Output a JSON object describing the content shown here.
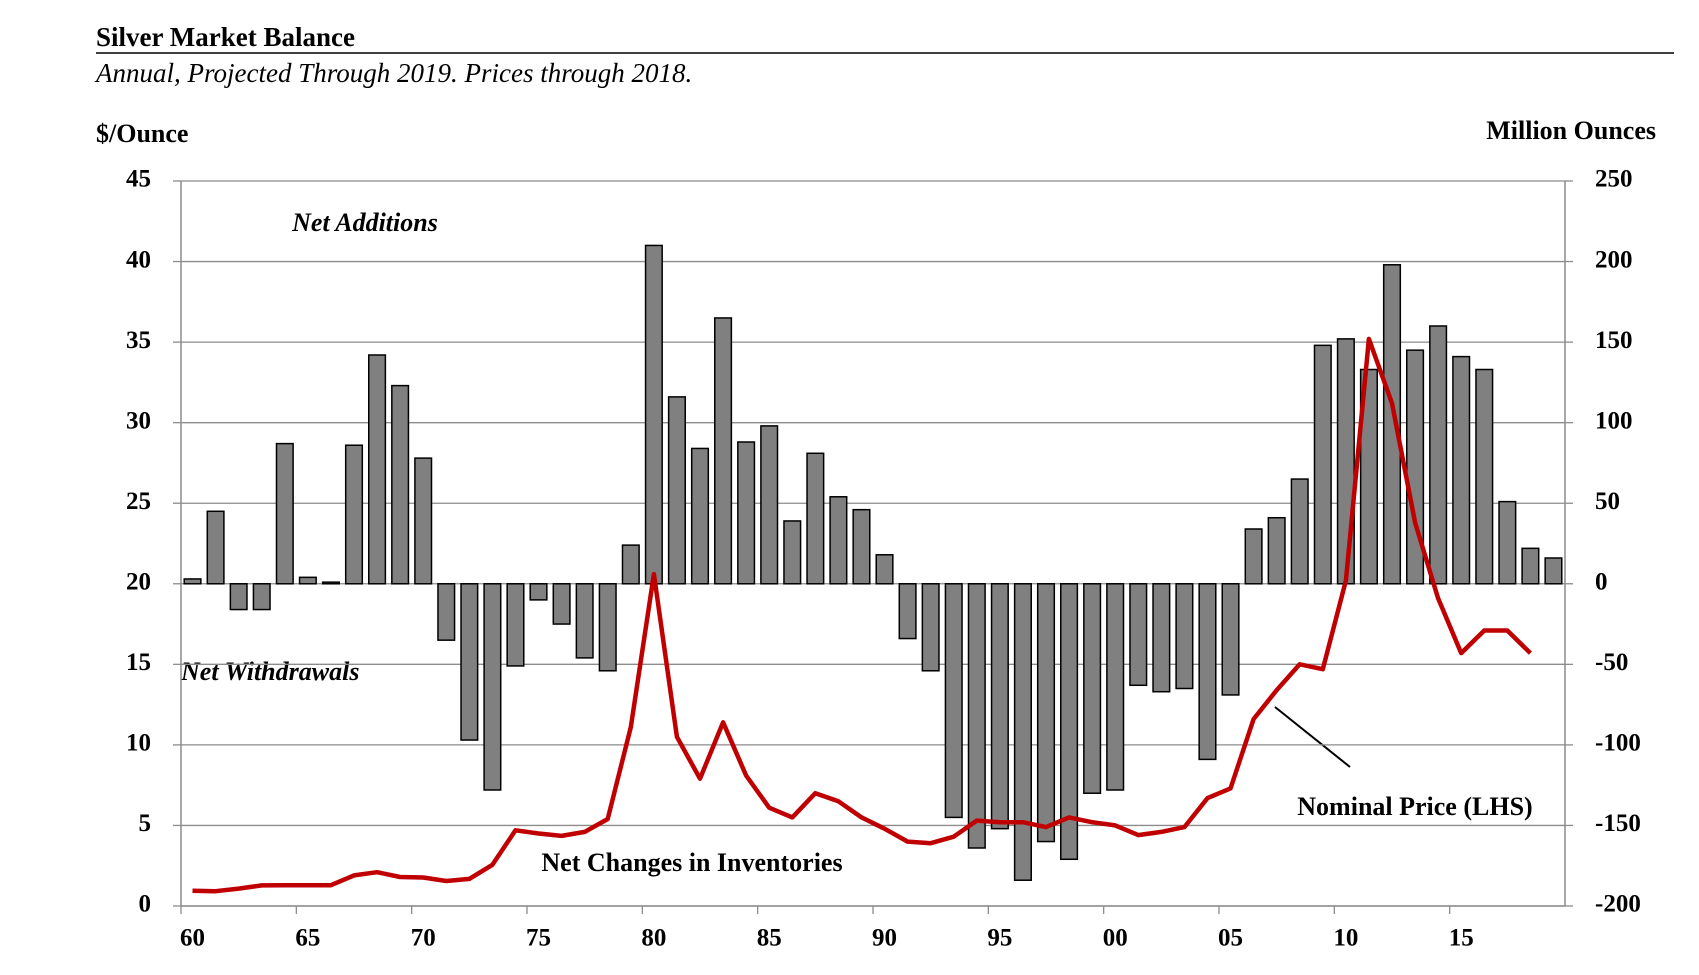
{
  "chart_data": {
    "type": "combo",
    "title": "Silver Market Balance",
    "subtitle": "Annual, Projected Through 2019. Prices through 2018.",
    "y_label": "$/Ounce",
    "y2_label": "Million Ounces",
    "annotations": [
      "Net Additions",
      "Net Withdrawals"
    ],
    "categories": [
      "60",
      null,
      null,
      null,
      null,
      "65",
      null,
      null,
      null,
      null,
      "70",
      null,
      null,
      null,
      null,
      "75",
      null,
      null,
      null,
      null,
      "80",
      null,
      null,
      null,
      null,
      "85",
      null,
      null,
      null,
      null,
      "90",
      null,
      null,
      null,
      null,
      "95",
      null,
      null,
      null,
      null,
      "00",
      null,
      null,
      null,
      null,
      "05",
      null,
      null,
      null,
      null,
      "10",
      null,
      null,
      null,
      null,
      "15",
      null,
      null,
      null,
      null
    ],
    "ylim": [
      0,
      45
    ],
    "yticks": [
      0,
      5,
      10,
      15,
      20,
      25,
      30,
      35,
      40,
      45
    ],
    "y2lim": [
      -200,
      250
    ],
    "y2ticks": [
      -200,
      -150,
      -100,
      -50,
      0,
      50,
      100,
      150,
      200,
      250
    ],
    "grid": true,
    "series": [
      {
        "name": "Net Changes in Inventories",
        "type": "bar",
        "axis": "y2",
        "color": "#808080",
        "values": [
          3,
          45,
          -16,
          -16,
          87,
          4,
          1,
          86,
          142,
          123,
          78,
          -35,
          -97,
          -128,
          -51,
          -10,
          -25,
          -46,
          -54,
          24,
          210,
          116,
          84,
          165,
          88,
          98,
          39,
          81,
          54,
          46,
          18,
          -34,
          -54,
          -145,
          -164,
          -152,
          -184,
          -160,
          -171,
          -130,
          -128,
          -63,
          -67,
          -65,
          -109,
          -69,
          34,
          41,
          65,
          148,
          152,
          133,
          198,
          145,
          160,
          141,
          133,
          51,
          22,
          16
        ]
      },
      {
        "name": "Nominal Price (LHS)",
        "type": "line",
        "axis": "y",
        "color": "#c00000",
        "values": [
          0.95,
          0.92,
          1.08,
          1.28,
          1.29,
          1.29,
          1.29,
          1.9,
          2.1,
          1.8,
          1.77,
          1.55,
          1.68,
          2.56,
          4.7,
          4.5,
          4.35,
          4.6,
          5.4,
          11.1,
          20.6,
          10.5,
          7.9,
          11.4,
          8.1,
          6.1,
          5.5,
          7.0,
          6.5,
          5.5,
          4.8,
          4.0,
          3.9,
          4.3,
          5.3,
          5.2,
          5.2,
          4.9,
          5.5,
          5.2,
          5.0,
          4.4,
          4.6,
          4.9,
          6.7,
          7.3,
          11.6,
          13.4,
          15.0,
          14.7,
          20.2,
          35.2,
          31.2,
          23.8,
          19.1,
          15.7,
          17.1,
          17.1,
          15.7,
          null
        ]
      }
    ]
  }
}
